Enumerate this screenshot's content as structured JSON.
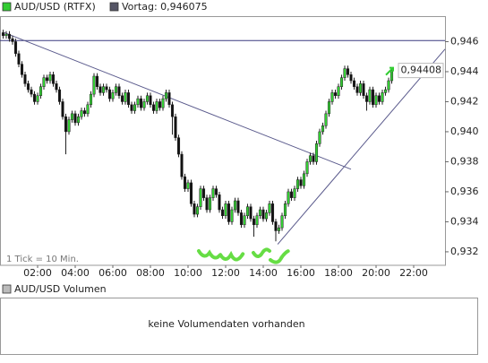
{
  "chart_data": {
    "type": "candlestick",
    "note": "1 Tick = 10 Min.",
    "xlim": [
      0,
      1420
    ],
    "ylim": [
      0.9311,
      0.9477
    ],
    "xticks": [
      {
        "value": 120,
        "label": "02:00"
      },
      {
        "value": 240,
        "label": "04:00"
      },
      {
        "value": 360,
        "label": "06:00"
      },
      {
        "value": 480,
        "label": "08:00"
      },
      {
        "value": 600,
        "label": "10:00"
      },
      {
        "value": 720,
        "label": "12:00"
      },
      {
        "value": 840,
        "label": "14:00"
      },
      {
        "value": 960,
        "label": "16:00"
      },
      {
        "value": 1080,
        "label": "18:00"
      },
      {
        "value": 1200,
        "label": "20:00"
      },
      {
        "value": 1320,
        "label": "22:00"
      }
    ],
    "yticks": [
      {
        "value": 0.932,
        "label": "0,932"
      },
      {
        "value": 0.934,
        "label": "0,934"
      },
      {
        "value": 0.936,
        "label": "0,936"
      },
      {
        "value": 0.938,
        "label": "0,938"
      },
      {
        "value": 0.94,
        "label": "0,940"
      },
      {
        "value": 0.942,
        "label": "0,942"
      },
      {
        "value": 0.944,
        "label": "0,944"
      },
      {
        "value": 0.946,
        "label": "0,946"
      }
    ],
    "grid": false,
    "previous_close": {
      "name": "Vortag: 0,946075",
      "value": 0.946075,
      "color": "#3a3a80"
    },
    "trend_lines": [
      {
        "x": [
          14,
          1120
        ],
        "y": [
          0.9466,
          0.9375
        ],
        "color": "#5a5a8c"
      },
      {
        "x": [
          886,
          1420
        ],
        "y": [
          0.9325,
          0.9455
        ],
        "color": "#5a5a8c"
      }
    ],
    "series": [
      {
        "name": "AUD/USD (RTFX)",
        "up_color": "#33cc33",
        "down_color": "#111111",
        "x": [
          10,
          20,
          30,
          40,
          50,
          60,
          70,
          80,
          90,
          100,
          110,
          120,
          130,
          140,
          150,
          160,
          170,
          180,
          190,
          200,
          210,
          220,
          230,
          240,
          250,
          260,
          270,
          280,
          290,
          300,
          310,
          320,
          330,
          340,
          350,
          360,
          370,
          380,
          390,
          400,
          410,
          420,
          430,
          440,
          450,
          460,
          470,
          480,
          490,
          500,
          510,
          520,
          530,
          540,
          550,
          560,
          570,
          580,
          590,
          600,
          610,
          620,
          630,
          640,
          650,
          660,
          670,
          680,
          690,
          700,
          710,
          720,
          730,
          740,
          750,
          760,
          770,
          780,
          790,
          800,
          810,
          820,
          830,
          840,
          850,
          860,
          870,
          880,
          890,
          900,
          910,
          920,
          930,
          940,
          950,
          960,
          970,
          980,
          990,
          1000,
          1010,
          1020,
          1030,
          1040,
          1050,
          1060,
          1070,
          1080,
          1090,
          1100,
          1110,
          1120,
          1130,
          1140,
          1150,
          1160,
          1170,
          1180,
          1190,
          1200,
          1210,
          1220,
          1230,
          1240,
          1250
        ],
        "open": [
          0.9466,
          0.9464,
          0.9465,
          0.9462,
          0.946,
          0.9452,
          0.9445,
          0.9438,
          0.9432,
          0.9428,
          0.9425,
          0.942,
          0.9424,
          0.943,
          0.9436,
          0.9434,
          0.9438,
          0.9432,
          0.9428,
          0.942,
          0.941,
          0.94,
          0.9408,
          0.9412,
          0.9406,
          0.941,
          0.9414,
          0.9412,
          0.9418,
          0.9425,
          0.9437,
          0.943,
          0.9426,
          0.943,
          0.9428,
          0.9422,
          0.9426,
          0.943,
          0.9424,
          0.942,
          0.9426,
          0.9418,
          0.9414,
          0.9418,
          0.9422,
          0.9416,
          0.942,
          0.9424,
          0.9418,
          0.9414,
          0.942,
          0.9416,
          0.9422,
          0.9426,
          0.9418,
          0.941,
          0.9396,
          0.9385,
          0.937,
          0.9362,
          0.9366,
          0.9352,
          0.9345,
          0.935,
          0.9362,
          0.9356,
          0.9348,
          0.9356,
          0.9362,
          0.9358,
          0.9348,
          0.9344,
          0.9352,
          0.934,
          0.9348,
          0.9354,
          0.9346,
          0.9338,
          0.9344,
          0.935,
          0.9342,
          0.9338,
          0.9344,
          0.9348,
          0.9342,
          0.9346,
          0.9352,
          0.934,
          0.9334,
          0.9336,
          0.9344,
          0.9352,
          0.936,
          0.9356,
          0.9362,
          0.9368,
          0.9364,
          0.9372,
          0.938,
          0.9384,
          0.938,
          0.9392,
          0.94,
          0.9404,
          0.9412,
          0.942,
          0.9426,
          0.9424,
          0.943,
          0.9436,
          0.9442,
          0.9438,
          0.9434,
          0.943,
          0.9426,
          0.9432,
          0.9424,
          0.942,
          0.9428,
          0.9418,
          0.9424,
          0.942,
          0.9426,
          0.9428,
          0.9434
        ],
        "high": [
          0.9468,
          0.9467,
          0.9467,
          0.9464,
          0.9462,
          0.9454,
          0.9447,
          0.944,
          0.9434,
          0.943,
          0.9427,
          0.9426,
          0.9432,
          0.9438,
          0.9438,
          0.944,
          0.944,
          0.9434,
          0.943,
          0.9422,
          0.9412,
          0.941,
          0.9414,
          0.9414,
          0.9412,
          0.9416,
          0.9416,
          0.942,
          0.9427,
          0.9439,
          0.9439,
          0.9432,
          0.9432,
          0.9432,
          0.943,
          0.9428,
          0.9432,
          0.9432,
          0.9426,
          0.9428,
          0.9428,
          0.942,
          0.942,
          0.9424,
          0.9424,
          0.9422,
          0.9426,
          0.9426,
          0.942,
          0.9422,
          0.9422,
          0.9424,
          0.9428,
          0.9428,
          0.942,
          0.9412,
          0.9398,
          0.9387,
          0.9372,
          0.9368,
          0.9368,
          0.9354,
          0.9352,
          0.9364,
          0.9364,
          0.9358,
          0.9358,
          0.9364,
          0.9364,
          0.936,
          0.935,
          0.9354,
          0.9354,
          0.935,
          0.9356,
          0.9356,
          0.9348,
          0.9346,
          0.9352,
          0.9352,
          0.9344,
          0.9346,
          0.935,
          0.935,
          0.9348,
          0.9354,
          0.9354,
          0.9342,
          0.9338,
          0.9346,
          0.9354,
          0.9362,
          0.9362,
          0.9364,
          0.937,
          0.937,
          0.9374,
          0.9382,
          0.9386,
          0.9386,
          0.9394,
          0.9402,
          0.9406,
          0.9414,
          0.9422,
          0.9428,
          0.9428,
          0.9432,
          0.9438,
          0.9444,
          0.9444,
          0.944,
          0.9436,
          0.9432,
          0.9434,
          0.9434,
          0.9426,
          0.943,
          0.943,
          0.9426,
          0.9426,
          0.9428,
          0.943,
          0.9436,
          0.9442
        ],
        "low": [
          0.9462,
          0.9462,
          0.946,
          0.9458,
          0.945,
          0.9443,
          0.9436,
          0.943,
          0.9426,
          0.9423,
          0.9418,
          0.9418,
          0.9422,
          0.9428,
          0.9432,
          0.9432,
          0.943,
          0.9426,
          0.9418,
          0.9408,
          0.9385,
          0.9398,
          0.9406,
          0.9404,
          0.9404,
          0.9408,
          0.941,
          0.941,
          0.9416,
          0.9423,
          0.9428,
          0.9424,
          0.9424,
          0.9426,
          0.942,
          0.942,
          0.9424,
          0.9422,
          0.9418,
          0.9418,
          0.9416,
          0.9412,
          0.9412,
          0.9416,
          0.9414,
          0.9414,
          0.9418,
          0.9416,
          0.9412,
          0.9412,
          0.9414,
          0.9414,
          0.942,
          0.9416,
          0.9398,
          0.9394,
          0.9383,
          0.9368,
          0.936,
          0.936,
          0.935,
          0.9343,
          0.9343,
          0.9348,
          0.9354,
          0.9346,
          0.9346,
          0.9354,
          0.9356,
          0.9346,
          0.9342,
          0.9342,
          0.9338,
          0.9338,
          0.9346,
          0.9344,
          0.9336,
          0.9336,
          0.9342,
          0.934,
          0.933,
          0.9336,
          0.9342,
          0.934,
          0.934,
          0.9344,
          0.9338,
          0.9327,
          0.9332,
          0.9334,
          0.9342,
          0.935,
          0.9354,
          0.9354,
          0.936,
          0.9362,
          0.9362,
          0.937,
          0.9378,
          0.9378,
          0.9378,
          0.939,
          0.9398,
          0.9402,
          0.941,
          0.9418,
          0.9422,
          0.9422,
          0.9428,
          0.9434,
          0.9436,
          0.9432,
          0.9428,
          0.9424,
          0.9424,
          0.9422,
          0.9414,
          0.9418,
          0.9416,
          0.9416,
          0.9418,
          0.9418,
          0.9424,
          0.9426,
          0.9432
        ],
        "close": [
          0.9464,
          0.9465,
          0.9462,
          0.946,
          0.9452,
          0.9445,
          0.9438,
          0.9432,
          0.9428,
          0.9425,
          0.942,
          0.9424,
          0.943,
          0.9436,
          0.9434,
          0.9438,
          0.9432,
          0.9428,
          0.942,
          0.941,
          0.94,
          0.9408,
          0.9412,
          0.9406,
          0.941,
          0.9414,
          0.9412,
          0.9418,
          0.9425,
          0.9437,
          0.943,
          0.9426,
          0.943,
          0.9428,
          0.9422,
          0.9426,
          0.943,
          0.9424,
          0.942,
          0.9426,
          0.9418,
          0.9414,
          0.9418,
          0.9422,
          0.9416,
          0.942,
          0.9424,
          0.9418,
          0.9414,
          0.942,
          0.9416,
          0.9422,
          0.9426,
          0.9418,
          0.941,
          0.9396,
          0.9385,
          0.937,
          0.9362,
          0.9366,
          0.9352,
          0.9345,
          0.935,
          0.9362,
          0.9356,
          0.9348,
          0.9356,
          0.9362,
          0.9358,
          0.9348,
          0.9344,
          0.9352,
          0.934,
          0.9348,
          0.9354,
          0.9346,
          0.9338,
          0.9344,
          0.935,
          0.9342,
          0.9338,
          0.9344,
          0.9348,
          0.9342,
          0.9346,
          0.9352,
          0.934,
          0.9334,
          0.9336,
          0.9344,
          0.9352,
          0.936,
          0.9356,
          0.9362,
          0.9368,
          0.9364,
          0.9372,
          0.938,
          0.9384,
          0.938,
          0.9392,
          0.94,
          0.9404,
          0.9412,
          0.942,
          0.9426,
          0.9424,
          0.943,
          0.9436,
          0.9442,
          0.9438,
          0.9434,
          0.943,
          0.9426,
          0.9432,
          0.9424,
          0.942,
          0.9428,
          0.9418,
          0.9424,
          0.942,
          0.9426,
          0.9428,
          0.9434,
          0.94408
        ],
        "last_label": "0,94408"
      }
    ]
  },
  "volume": {
    "title": "AUD/USD Volumen",
    "message": "keine Volumendaten vorhanden"
  }
}
